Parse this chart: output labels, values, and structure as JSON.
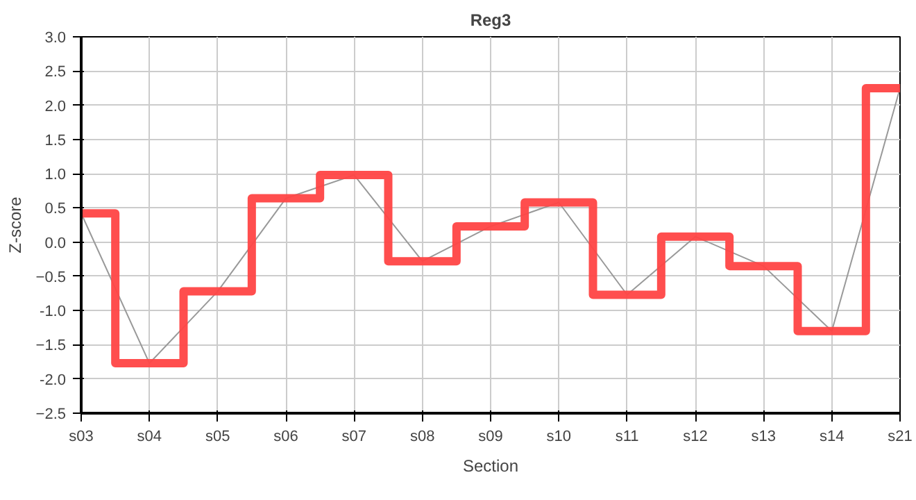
{
  "chart_data": {
    "type": "line",
    "title": "Reg3",
    "xlabel": "Section",
    "ylabel": "Z-score",
    "categories": [
      "s03",
      "s04",
      "s05",
      "s06",
      "s07",
      "s08",
      "s09",
      "s10",
      "s11",
      "s12",
      "s13",
      "s14",
      "s21"
    ],
    "series": [
      {
        "color": "#999999",
        "values": [
          0.42,
          -1.77,
          -0.72,
          0.64,
          0.98,
          -0.28,
          0.23,
          0.58,
          -0.77,
          0.08,
          -0.35,
          -1.3,
          2.25
        ]
      },
      {
        "type": "step",
        "color": "#ff4444",
        "values": [
          0.42,
          -1.77,
          -0.72,
          0.64,
          0.98,
          -0.28,
          0.23,
          0.58,
          -0.77,
          0.08,
          -0.35,
          -1.3,
          2.25
        ]
      }
    ],
    "ylim": [
      -2.5,
      3.0
    ],
    "yticks": [
      -2.5,
      {
        "value": -2,
        "label": "-2.0"
      },
      -1.5,
      {
        "value": -1,
        "label": "-1.0"
      },
      -0.5,
      {
        "value": 0,
        "label": "0.0"
      },
      0.5,
      {
        "value": 1,
        "label": "1.0"
      },
      1.5,
      {
        "value": 2,
        "label": "2.0"
      },
      2.5,
      {
        "value": 3,
        "label": "3.0"
      }
    ],
    "grid": true
  }
}
